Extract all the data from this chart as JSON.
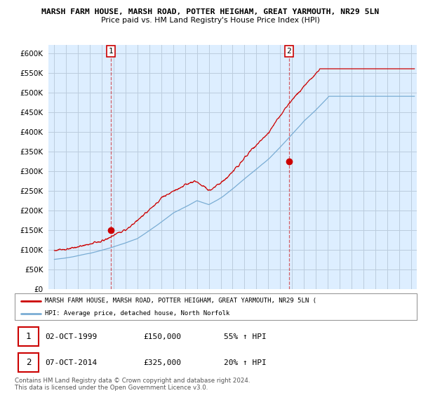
{
  "title_line1": "MARSH FARM HOUSE, MARSH ROAD, POTTER HEIGHAM, GREAT YARMOUTH, NR29 5LN",
  "title_line2": "Price paid vs. HM Land Registry's House Price Index (HPI)",
  "ylabel_ticks": [
    "£0",
    "£50K",
    "£100K",
    "£150K",
    "£200K",
    "£250K",
    "£300K",
    "£350K",
    "£400K",
    "£450K",
    "£500K",
    "£550K",
    "£600K"
  ],
  "ytick_values": [
    0,
    50000,
    100000,
    150000,
    200000,
    250000,
    300000,
    350000,
    400000,
    450000,
    500000,
    550000,
    600000
  ],
  "ylim": [
    0,
    620000
  ],
  "xlim_start": 1994.5,
  "xlim_end": 2025.5,
  "hpi_color": "#7aadd4",
  "price_color": "#cc0000",
  "plot_bg_color": "#ddeeff",
  "sale1_x": 1999.75,
  "sale1_y": 150000,
  "sale2_x": 2014.75,
  "sale2_y": 325000,
  "legend_red_label": "MARSH FARM HOUSE, MARSH ROAD, POTTER HEIGHAM, GREAT YARMOUTH, NR29 5LN (",
  "legend_blue_label": "HPI: Average price, detached house, North Norfolk",
  "table_row1": [
    "1",
    "02-OCT-1999",
    "£150,000",
    "55% ↑ HPI"
  ],
  "table_row2": [
    "2",
    "07-OCT-2014",
    "£325,000",
    "20% ↑ HPI"
  ],
  "footnote": "Contains HM Land Registry data © Crown copyright and database right 2024.\nThis data is licensed under the Open Government Licence v3.0.",
  "background_color": "#ffffff",
  "grid_color": "#bbccdd"
}
